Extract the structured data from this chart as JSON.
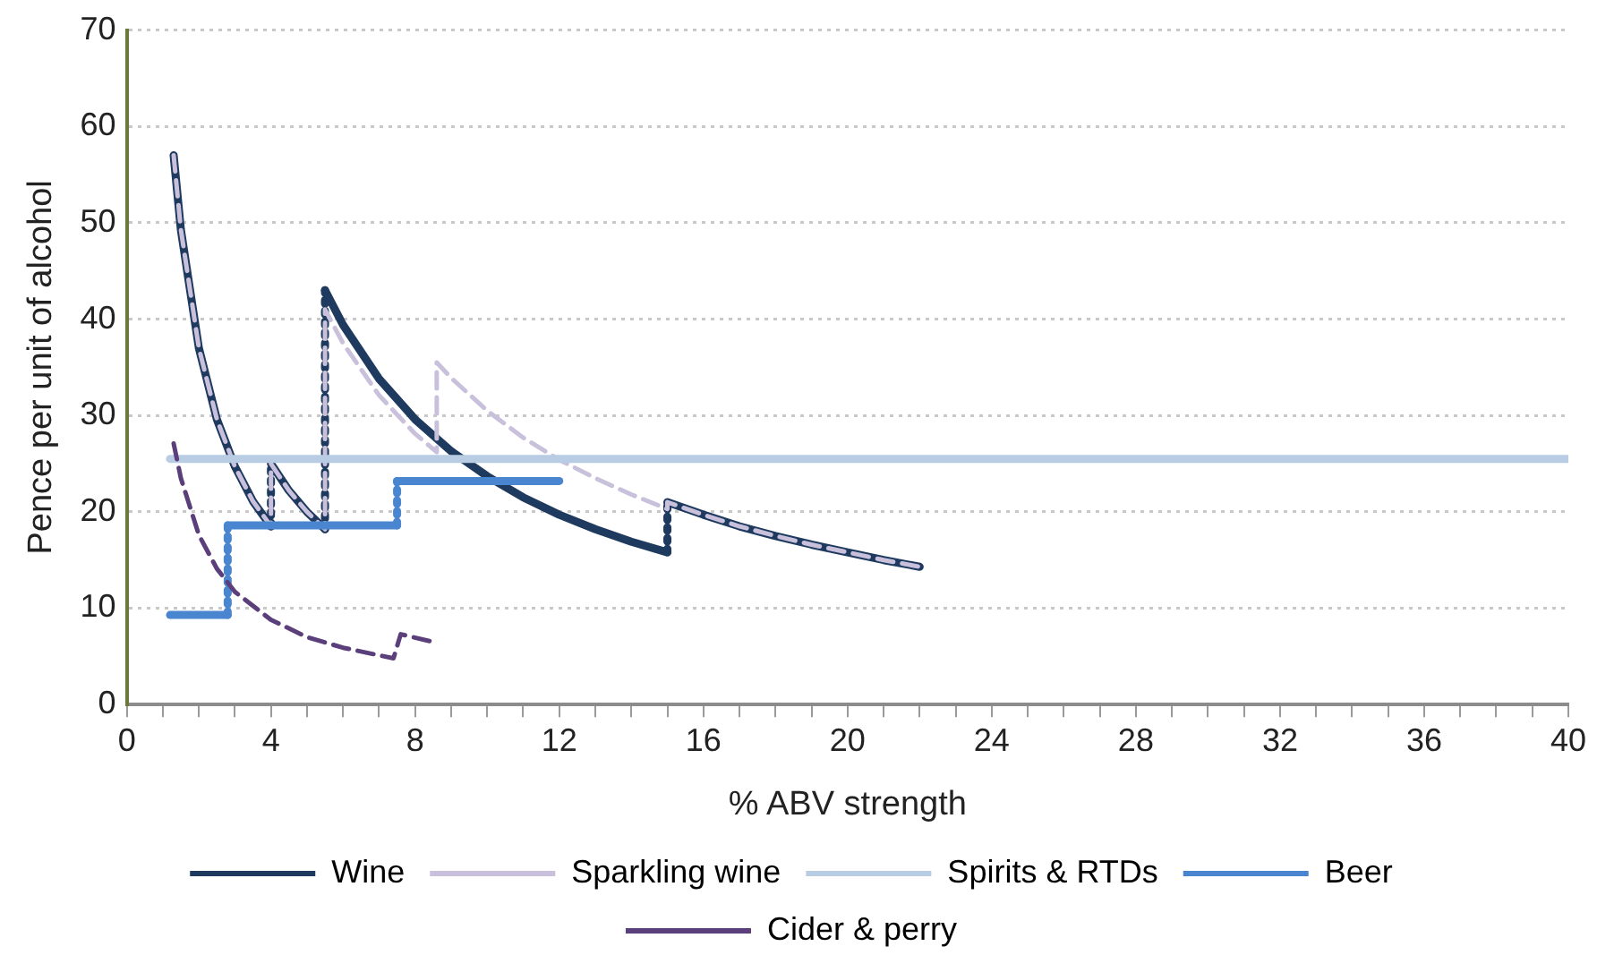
{
  "chart_data": {
    "type": "line",
    "xlabel": "% ABV strength",
    "ylabel": "Pence per unit of alcohol",
    "xlim": [
      0,
      40
    ],
    "ylim": [
      0,
      70
    ],
    "xticks": [
      0,
      {
        "value": 1,
        "label": null
      },
      {
        "value": 2,
        "label": null
      },
      {
        "value": 3,
        "label": null
      },
      4,
      {
        "value": 5,
        "label": null
      },
      {
        "value": 6,
        "label": null
      },
      {
        "value": 7,
        "label": null
      },
      8,
      {
        "value": 9,
        "label": null
      },
      {
        "value": 10,
        "label": null
      },
      {
        "value": 11,
        "label": null
      },
      12,
      {
        "value": 13,
        "label": null
      },
      {
        "value": 14,
        "label": null
      },
      {
        "value": 15,
        "label": null
      },
      16,
      {
        "value": 17,
        "label": null
      },
      {
        "value": 18,
        "label": null
      },
      {
        "value": 19,
        "label": null
      },
      20,
      {
        "value": 21,
        "label": null
      },
      {
        "value": 22,
        "label": null
      },
      {
        "value": 23,
        "label": null
      },
      24,
      {
        "value": 25,
        "label": null
      },
      {
        "value": 26,
        "label": null
      },
      {
        "value": 27,
        "label": null
      },
      28,
      {
        "value": 29,
        "label": null
      },
      {
        "value": 30,
        "label": null
      },
      {
        "value": 31,
        "label": null
      },
      32,
      {
        "value": 33,
        "label": null
      },
      {
        "value": 34,
        "label": null
      },
      {
        "value": 35,
        "label": null
      },
      36,
      {
        "value": 37,
        "label": null
      },
      {
        "value": 38,
        "label": null
      },
      {
        "value": 39,
        "label": null
      },
      40
    ],
    "yticks": [
      0,
      10,
      20,
      30,
      40,
      50,
      60,
      70
    ],
    "grid": "y",
    "legend": "bottom",
    "marker": "none",
    "series": [
      {
        "name": "Wine",
        "color": "#1f3a5f",
        "line_style": "solid",
        "x": [
          1.3,
          1.5,
          2,
          2.5,
          3,
          3.5,
          4,
          4,
          4.5,
          5,
          5.5,
          5.5,
          6,
          7,
          8,
          9,
          10,
          11,
          12,
          13,
          14,
          15,
          15,
          16,
          17,
          18,
          19,
          20,
          21,
          22
        ],
        "values": [
          57,
          49.3,
          37,
          29.6,
          24.7,
          21.1,
          18.5,
          25,
          22.2,
          20,
          18.2,
          43,
          39.4,
          33.8,
          29.6,
          26.3,
          23.7,
          21.5,
          19.7,
          18.2,
          16.9,
          15.8,
          21,
          19.7,
          18.5,
          17.5,
          16.6,
          15.8,
          15,
          14.3
        ]
      },
      {
        "name": "Sparkling wine",
        "color": "#c9c0dc",
        "line_style": "dashed",
        "x": [
          1.3,
          1.5,
          2,
          2.5,
          3,
          3.5,
          4,
          4,
          4.5,
          5,
          5.5,
          5.5,
          6,
          7,
          8,
          8.6,
          8.6,
          9,
          10,
          11,
          12,
          13,
          14,
          15,
          15,
          16,
          17,
          18,
          19,
          20,
          21,
          22
        ],
        "values": [
          57,
          49.3,
          37,
          29.6,
          24.7,
          21.1,
          18.5,
          25,
          22.2,
          20,
          18.2,
          41,
          37.5,
          32.1,
          28.1,
          26.2,
          35.5,
          33.9,
          30.5,
          27.7,
          25.4,
          23.5,
          21.8,
          20.3,
          21,
          19.7,
          18.5,
          17.5,
          16.6,
          15.8,
          15,
          14.3
        ]
      },
      {
        "name": "Spirits & RTDs",
        "color": "#b8cce4",
        "line_style": "solid",
        "x": [
          1.2,
          40
        ],
        "values": [
          25.5,
          25.5
        ]
      },
      {
        "name": "Beer",
        "color": "#4a86d0",
        "line_style": "solid",
        "x": [
          1.2,
          2.8,
          2.8,
          7.5,
          7.5,
          12
        ],
        "values": [
          9.3,
          9.3,
          18.6,
          18.6,
          23.2,
          23.2
        ]
      },
      {
        "name": "Cider & perry",
        "color": "#5b3f7a",
        "line_style": "dashed",
        "x": [
          1.3,
          1.5,
          2,
          2.5,
          3,
          4,
          5,
          6,
          7.4,
          7.6,
          8.5
        ],
        "values": [
          27.1,
          23.5,
          17.6,
          14.1,
          11.7,
          8.8,
          7,
          5.9,
          4.8,
          7.3,
          6.5
        ]
      }
    ]
  }
}
